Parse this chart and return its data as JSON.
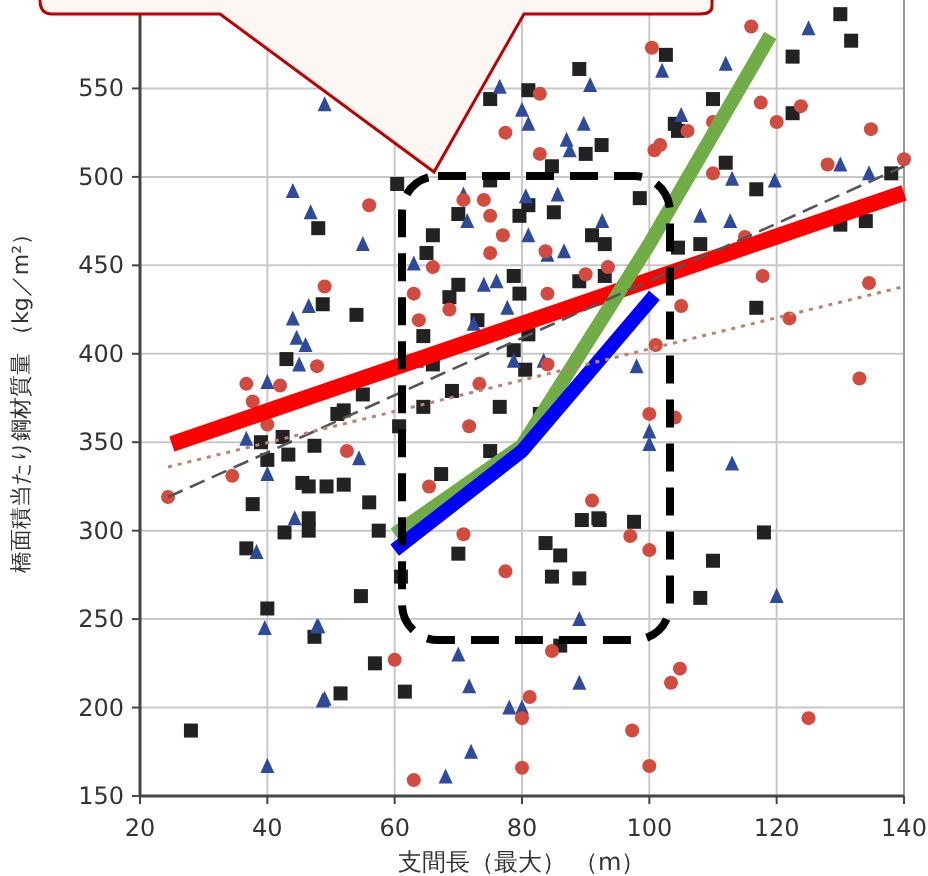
{
  "chart_data": {
    "type": "scatter",
    "xlabel": "支間長（最大） （m）",
    "ylabel": "橋面積当たり鋼材質量 （kg／m²）",
    "xlim": [
      20,
      140
    ],
    "ylim": [
      150,
      600
    ],
    "xticks": [
      20,
      40,
      60,
      80,
      100,
      120,
      140
    ],
    "yticks": [
      150,
      200,
      250,
      300,
      350,
      400,
      450,
      500,
      550
    ],
    "grid": true,
    "series": [
      {
        "marker": "square",
        "color": "#222222",
        "x": [
          48,
          48.7,
          43,
          60.4,
          54,
          51,
          75,
          81,
          89,
          92.5,
          90,
          84.7,
          75,
          70,
          81,
          85,
          79.6,
          66,
          65,
          91,
          93,
          70,
          68.6,
          78.7,
          79.6,
          89,
          93,
          73,
          81,
          64.5,
          66,
          78.7,
          80.5,
          69,
          64.5,
          52,
          55,
          82.8,
          60.7,
          76.5,
          130,
          131.7,
          122.5,
          102.6,
          110,
          104,
          104.5,
          122.5,
          112,
          116.8,
          138,
          130,
          134,
          104.5,
          108,
          116.8,
          98.5,
          75,
          67.3,
          56,
          57.5,
          70,
          61,
          54.7,
          83.7,
          86,
          84.7,
          89,
          89.4,
          92.2,
          56.9,
          61.6,
          51.5,
          86,
          52,
          92,
          97.6,
          118,
          110,
          108,
          28,
          37.7,
          36.7,
          40,
          39,
          40,
          42.7,
          42.4,
          43.3,
          47.4,
          46.5,
          46.5,
          45.5,
          46.5,
          47.4,
          49.3
        ],
        "values": [
          471,
          428,
          397,
          496,
          422,
          366,
          544,
          549,
          561,
          518,
          513,
          506,
          498,
          479,
          484,
          480,
          478,
          467,
          457,
          467,
          462,
          439,
          432,
          444,
          434,
          441,
          444,
          419,
          411,
          410,
          394,
          402,
          391,
          379,
          370,
          368,
          377,
          366,
          359,
          370,
          592,
          577,
          568,
          569,
          544,
          530,
          526,
          536,
          508,
          493,
          502,
          473,
          475,
          460,
          462,
          426,
          488,
          345,
          332,
          316,
          300,
          287,
          274,
          263,
          293,
          286,
          274,
          273,
          306,
          306,
          225,
          209,
          208,
          235,
          326,
          307,
          305,
          299,
          283,
          262,
          187,
          315,
          290,
          256,
          350,
          340,
          299,
          353,
          343,
          240,
          300,
          307,
          327,
          325,
          348,
          325
        ]
      },
      {
        "marker": "triangle",
        "color": "#2e4a9a",
        "x": [
          49,
          44,
          46.8,
          44,
          46.5,
          44.6,
          46,
          45,
          40,
          55,
          76.5,
          80,
          81,
          89.7,
          87,
          87.5,
          90.7,
          70.8,
          80.6,
          85.6,
          71.4,
          81,
          63,
          74,
          76,
          77.7,
          84,
          86.6,
          92.6,
          63.5,
          72.4,
          78.7,
          83.4,
          125,
          102,
          112,
          105,
          113,
          119.7,
          130,
          134.5,
          108,
          112.7,
          98,
          70,
          71.7,
          78,
          80,
          72,
          68,
          89,
          89,
          47.8,
          48.7,
          54.4,
          100,
          100,
          113,
          120,
          36.7,
          40,
          44.3,
          38.3,
          39.6,
          40,
          48,
          49
        ],
        "values": [
          541,
          492,
          480,
          420,
          427,
          409,
          405,
          394,
          384,
          462,
          551,
          538,
          530,
          530,
          521,
          515,
          552,
          490,
          489,
          490,
          475,
          467,
          451,
          439,
          441,
          426,
          456,
          458,
          475,
          396,
          417,
          396,
          396,
          584,
          560,
          564,
          535,
          499,
          498,
          507,
          502,
          478,
          475,
          393,
          230,
          212,
          200,
          200,
          175,
          161,
          250,
          214,
          246,
          204,
          341,
          356,
          349,
          338,
          263,
          352,
          332,
          307,
          288,
          245,
          167,
          246,
          205
        ]
      },
      {
        "marker": "circle",
        "color": "#d24b3e",
        "x": [
          49,
          47.8,
          36.7,
          42,
          37.7,
          40,
          56,
          82.8,
          77.4,
          82.8,
          70.8,
          74,
          75,
          77,
          75,
          66,
          63,
          68.6,
          83.7,
          84,
          90,
          63.8,
          71.7,
          84,
          73.3,
          116,
          100.4,
          117.5,
          123.8,
          120,
          110,
          106,
          101.7,
          100.8,
          134.8,
          128,
          140,
          110,
          115,
          117.8,
          134.5,
          105,
          122,
          101,
          133,
          93.5,
          52.5,
          70.8,
          77.4,
          60,
          81.2,
          80,
          80,
          63,
          84.7,
          91,
          65.4,
          100,
          104,
          97,
          100,
          104.8,
          103.4,
          97.3,
          125,
          100,
          24.4,
          34.5
        ],
        "values": [
          438,
          393,
          383,
          382,
          373,
          360,
          484,
          547,
          525,
          513,
          487,
          487,
          478,
          467,
          457,
          449,
          434,
          425,
          458,
          434,
          445,
          419,
          359,
          394,
          383,
          585,
          573,
          542,
          540,
          531,
          531,
          526,
          518,
          515,
          527,
          507,
          510,
          502,
          466,
          444,
          440,
          427,
          420,
          405,
          386,
          449,
          345,
          298,
          277,
          227,
          206,
          194,
          166,
          159,
          232,
          317,
          325,
          366,
          364,
          297,
          289,
          222,
          214,
          187,
          194,
          167,
          319,
          331
        ]
      },
      {
        "type": "line",
        "color": "#ff0000",
        "line_style": "solid",
        "x": [
          25,
          140
        ],
        "values": [
          349,
          491
        ]
      },
      {
        "type": "line",
        "color": "#70ad47",
        "line_style": "solid",
        "x": [
          60,
          80,
          100,
          119
        ],
        "values": [
          298,
          348,
          462,
          580
        ]
      },
      {
        "type": "line",
        "color": "#0000ff",
        "line_style": "solid",
        "x": [
          60,
          80,
          100.8
        ],
        "values": [
          289,
          345,
          433
        ]
      },
      {
        "type": "line",
        "color": "#555555",
        "line_style": "dashed",
        "x": [
          24.4,
          140
        ],
        "values": [
          319,
          506
        ]
      },
      {
        "type": "line",
        "color": "#c08070",
        "line_style": "dotted",
        "x": [
          24.4,
          140
        ],
        "values": [
          336,
          438
        ]
      }
    ]
  }
}
